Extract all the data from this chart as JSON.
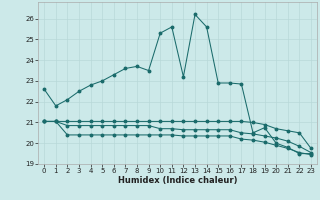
{
  "xlabel": "Humidex (Indice chaleur)",
  "background_color": "#cce9e9",
  "grid_color": "#b8d8d8",
  "line_color": "#1a6b6b",
  "xlim": [
    -0.5,
    23.5
  ],
  "ylim": [
    19,
    26.8
  ],
  "yticks": [
    19,
    20,
    21,
    22,
    23,
    24,
    25,
    26
  ],
  "xticks": [
    0,
    1,
    2,
    3,
    4,
    5,
    6,
    7,
    8,
    9,
    10,
    11,
    12,
    13,
    14,
    15,
    16,
    17,
    18,
    19,
    20,
    21,
    22,
    23
  ],
  "series1_y": [
    22.6,
    21.8,
    22.1,
    22.5,
    22.8,
    23.0,
    23.3,
    23.6,
    23.7,
    23.5,
    25.3,
    25.6,
    23.2,
    26.2,
    25.6,
    22.9,
    22.9,
    22.85,
    20.5,
    20.75,
    20.0,
    19.8,
    19.5,
    19.5
  ],
  "series2_y": [
    21.05,
    21.05,
    21.05,
    21.05,
    21.05,
    21.05,
    21.05,
    21.05,
    21.05,
    21.05,
    21.05,
    21.05,
    21.05,
    21.05,
    21.05,
    21.05,
    21.05,
    21.05,
    21.0,
    20.9,
    20.7,
    20.6,
    20.5,
    19.75
  ],
  "series3_y": [
    21.05,
    21.05,
    20.85,
    20.85,
    20.85,
    20.85,
    20.85,
    20.85,
    20.85,
    20.85,
    20.7,
    20.7,
    20.65,
    20.65,
    20.65,
    20.65,
    20.65,
    20.5,
    20.45,
    20.35,
    20.25,
    20.1,
    19.85,
    19.55
  ],
  "series4_y": [
    21.05,
    21.05,
    20.4,
    20.4,
    20.4,
    20.4,
    20.4,
    20.4,
    20.4,
    20.4,
    20.4,
    20.4,
    20.35,
    20.35,
    20.35,
    20.35,
    20.35,
    20.2,
    20.15,
    20.05,
    19.9,
    19.75,
    19.55,
    19.45
  ]
}
